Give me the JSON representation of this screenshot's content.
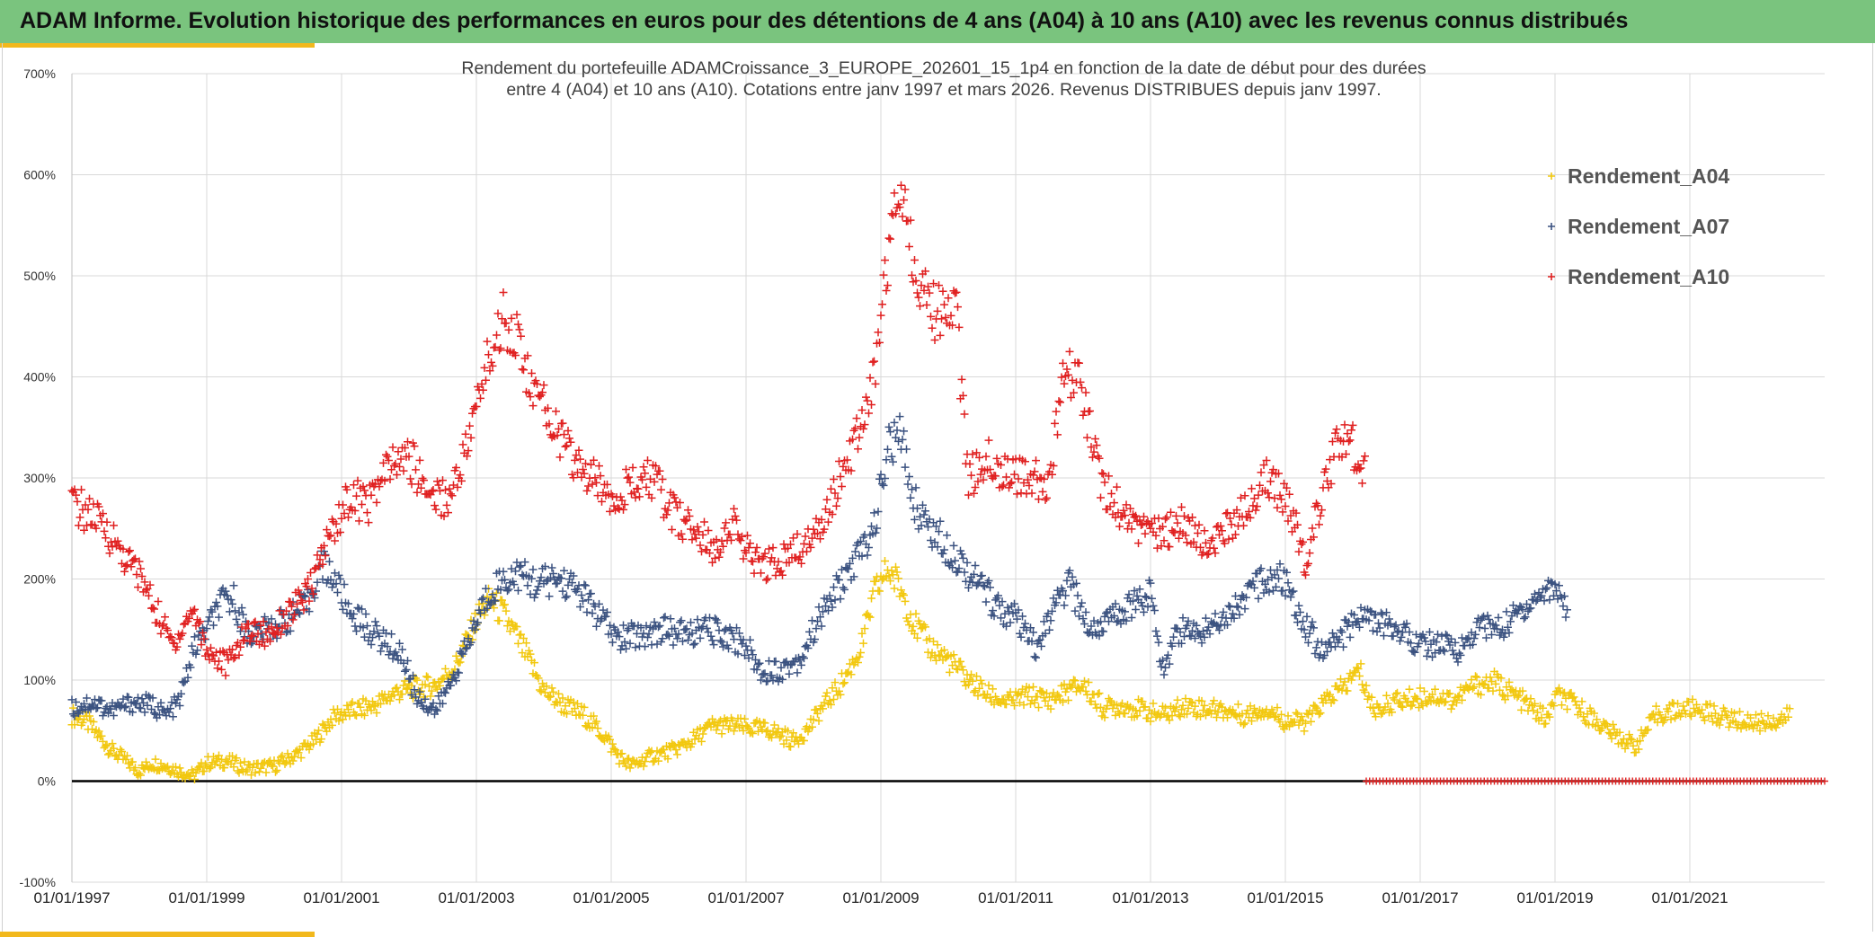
{
  "banner": {
    "title": "ADAM Informe. Evolution historique des performances en euros pour des détentions de 4 ans (A04) à 10 ans (A10) avec les revenus connus distribués"
  },
  "colors": {
    "banner": "#7ac47e",
    "accent": "#f2b81c",
    "A04": "#f2c80f",
    "A07": "#3b5280",
    "A10": "#e02020",
    "grid": "#d9d9d9",
    "zero": "#000000"
  },
  "chart_data": {
    "type": "scatter",
    "title": "Rendement du portefeuille ADAMCroissance_3_EUROPE_202601_15_1p4  en fonction de la date de début pour des durées",
    "subtitle": "entre 4 (A04) et 10 ans (A10). Cotations entre janv 1997 et mars 2026. Revenus DISTRIBUES depuis janv 1997.",
    "xlabel": "",
    "ylabel": "",
    "x_range": [
      1997.0,
      2023.0
    ],
    "ylim": [
      -100,
      700
    ],
    "y_ticks": [
      "700%",
      "600%",
      "500%",
      "400%",
      "300%",
      "200%",
      "100%",
      "0%",
      "-100%"
    ],
    "x_ticks": [
      "01/01/1997",
      "01/01/1999",
      "01/01/2001",
      "01/01/2003",
      "01/01/2005",
      "01/01/2007",
      "01/01/2009",
      "01/01/2011",
      "01/01/2013",
      "01/01/2015",
      "01/01/2017",
      "01/01/2019",
      "01/01/2021"
    ],
    "grid": true,
    "legend_position": "top-right",
    "marker": "+",
    "series": [
      {
        "name": "Rendement_A04",
        "color_key": "A04",
        "points": [
          [
            1997.0,
            65
          ],
          [
            1997.2,
            60
          ],
          [
            1997.4,
            45
          ],
          [
            1997.6,
            30
          ],
          [
            1997.8,
            20
          ],
          [
            1998.0,
            10
          ],
          [
            1998.2,
            18
          ],
          [
            1998.4,
            15
          ],
          [
            1998.6,
            10
          ],
          [
            1998.8,
            5
          ],
          [
            1999.0,
            18
          ],
          [
            1999.3,
            20
          ],
          [
            1999.6,
            12
          ],
          [
            2000.0,
            15
          ],
          [
            2000.3,
            25
          ],
          [
            2000.6,
            40
          ],
          [
            2000.9,
            65
          ],
          [
            2001.2,
            70
          ],
          [
            2001.5,
            75
          ],
          [
            2001.8,
            88
          ],
          [
            2002.1,
            92
          ],
          [
            2002.4,
            95
          ],
          [
            2002.7,
            115
          ],
          [
            2003.0,
            160
          ],
          [
            2003.2,
            180
          ],
          [
            2003.4,
            165
          ],
          [
            2003.7,
            130
          ],
          [
            2004.0,
            90
          ],
          [
            2004.3,
            75
          ],
          [
            2004.6,
            65
          ],
          [
            2004.9,
            45
          ],
          [
            2005.1,
            25
          ],
          [
            2005.3,
            15
          ],
          [
            2005.6,
            25
          ],
          [
            2005.9,
            30
          ],
          [
            2006.2,
            40
          ],
          [
            2006.5,
            55
          ],
          [
            2006.8,
            55
          ],
          [
            2007.1,
            52
          ],
          [
            2007.4,
            50
          ],
          [
            2007.7,
            40
          ],
          [
            2007.9,
            50
          ],
          [
            2008.1,
            70
          ],
          [
            2008.4,
            95
          ],
          [
            2008.7,
            130
          ],
          [
            2008.9,
            185
          ],
          [
            2009.1,
            210
          ],
          [
            2009.3,
            190
          ],
          [
            2009.5,
            155
          ],
          [
            2009.7,
            135
          ],
          [
            2010.0,
            120
          ],
          [
            2010.3,
            100
          ],
          [
            2010.6,
            85
          ],
          [
            2010.9,
            78
          ],
          [
            2011.2,
            85
          ],
          [
            2011.5,
            80
          ],
          [
            2011.8,
            90
          ],
          [
            2012.0,
            95
          ],
          [
            2012.3,
            72
          ],
          [
            2012.6,
            75
          ],
          [
            2012.9,
            70
          ],
          [
            2013.2,
            65
          ],
          [
            2013.5,
            75
          ],
          [
            2013.8,
            72
          ],
          [
            2014.1,
            70
          ],
          [
            2014.4,
            65
          ],
          [
            2014.7,
            72
          ],
          [
            2015.0,
            60
          ],
          [
            2015.3,
            58
          ],
          [
            2015.6,
            80
          ],
          [
            2015.9,
            95
          ],
          [
            2016.1,
            110
          ],
          [
            2016.3,
            70
          ],
          [
            2016.6,
            78
          ],
          [
            2016.9,
            82
          ],
          [
            2017.2,
            85
          ],
          [
            2017.5,
            80
          ],
          [
            2017.8,
            95
          ],
          [
            2018.1,
            98
          ],
          [
            2018.4,
            85
          ],
          [
            2018.7,
            70
          ],
          [
            2018.9,
            60
          ],
          [
            2019.0,
            85
          ],
          [
            2019.3,
            75
          ],
          [
            2019.6,
            60
          ],
          [
            2019.9,
            45
          ],
          [
            2020.2,
            35
          ],
          [
            2020.5,
            65
          ],
          [
            2020.8,
            70
          ],
          [
            2021.1,
            72
          ],
          [
            2021.4,
            65
          ],
          [
            2021.7,
            60
          ],
          [
            2022.0,
            58
          ],
          [
            2022.3,
            60
          ],
          [
            2022.5,
            65
          ]
        ]
      },
      {
        "name": "Rendement_A07",
        "color_key": "A07",
        "points": [
          [
            1997.0,
            72
          ],
          [
            1997.3,
            78
          ],
          [
            1997.6,
            70
          ],
          [
            1997.9,
            78
          ],
          [
            1998.2,
            75
          ],
          [
            1998.4,
            65
          ],
          [
            1998.6,
            80
          ],
          [
            1998.8,
            130
          ],
          [
            1999.0,
            150
          ],
          [
            1999.2,
            175
          ],
          [
            1999.4,
            180
          ],
          [
            1999.6,
            145
          ],
          [
            1999.9,
            150
          ],
          [
            2000.2,
            160
          ],
          [
            2000.5,
            175
          ],
          [
            2000.7,
            215
          ],
          [
            2000.9,
            200
          ],
          [
            2001.1,
            170
          ],
          [
            2001.4,
            150
          ],
          [
            2001.7,
            135
          ],
          [
            2001.9,
            125
          ],
          [
            2002.1,
            85
          ],
          [
            2002.4,
            70
          ],
          [
            2002.6,
            95
          ],
          [
            2002.9,
            140
          ],
          [
            2003.1,
            175
          ],
          [
            2003.3,
            195
          ],
          [
            2003.6,
            205
          ],
          [
            2003.9,
            195
          ],
          [
            2004.2,
            200
          ],
          [
            2004.5,
            190
          ],
          [
            2004.8,
            165
          ],
          [
            2005.1,
            140
          ],
          [
            2005.4,
            145
          ],
          [
            2005.8,
            150
          ],
          [
            2006.1,
            145
          ],
          [
            2006.4,
            150
          ],
          [
            2006.7,
            145
          ],
          [
            2007.0,
            135
          ],
          [
            2007.2,
            110
          ],
          [
            2007.5,
            110
          ],
          [
            2007.8,
            120
          ],
          [
            2008.0,
            150
          ],
          [
            2008.3,
            185
          ],
          [
            2008.6,
            215
          ],
          [
            2008.9,
            250
          ],
          [
            2009.1,
            330
          ],
          [
            2009.3,
            340
          ],
          [
            2009.5,
            275
          ],
          [
            2009.8,
            245
          ],
          [
            2010.1,
            225
          ],
          [
            2010.4,
            200
          ],
          [
            2010.7,
            175
          ],
          [
            2011.0,
            160
          ],
          [
            2011.3,
            130
          ],
          [
            2011.6,
            175
          ],
          [
            2011.8,
            195
          ],
          [
            2012.1,
            150
          ],
          [
            2012.4,
            160
          ],
          [
            2012.7,
            175
          ],
          [
            2013.0,
            185
          ],
          [
            2013.2,
            110
          ],
          [
            2013.4,
            150
          ],
          [
            2013.7,
            145
          ],
          [
            2014.0,
            160
          ],
          [
            2014.3,
            175
          ],
          [
            2014.6,
            195
          ],
          [
            2014.9,
            205
          ],
          [
            2015.2,
            170
          ],
          [
            2015.5,
            130
          ],
          [
            2015.8,
            140
          ],
          [
            2016.1,
            165
          ],
          [
            2016.4,
            155
          ],
          [
            2016.7,
            150
          ],
          [
            2017.0,
            135
          ],
          [
            2017.3,
            135
          ],
          [
            2017.6,
            130
          ],
          [
            2017.9,
            155
          ],
          [
            2018.2,
            150
          ],
          [
            2018.5,
            170
          ],
          [
            2018.8,
            185
          ],
          [
            2019.0,
            195
          ],
          [
            2019.2,
            170
          ]
        ]
      },
      {
        "name": "Rendement_A10",
        "color_key": "A10",
        "points": [
          [
            1997.0,
            275
          ],
          [
            1997.3,
            262
          ],
          [
            1997.5,
            250
          ],
          [
            1997.8,
            220
          ],
          [
            1998.0,
            205
          ],
          [
            1998.3,
            160
          ],
          [
            1998.5,
            135
          ],
          [
            1998.8,
            170
          ],
          [
            1999.0,
            130
          ],
          [
            1999.3,
            115
          ],
          [
            1999.6,
            150
          ],
          [
            1999.9,
            145
          ],
          [
            2000.2,
            165
          ],
          [
            2000.5,
            185
          ],
          [
            2000.8,
            240
          ],
          [
            2001.1,
            280
          ],
          [
            2001.4,
            275
          ],
          [
            2001.7,
            310
          ],
          [
            2002.0,
            320
          ],
          [
            2002.3,
            285
          ],
          [
            2002.6,
            280
          ],
          [
            2002.9,
            340
          ],
          [
            2003.1,
            400
          ],
          [
            2003.4,
            460
          ],
          [
            2003.6,
            440
          ],
          [
            2003.8,
            390
          ],
          [
            2004.1,
            360
          ],
          [
            2004.4,
            320
          ],
          [
            2004.7,
            300
          ],
          [
            2005.0,
            285
          ],
          [
            2005.3,
            290
          ],
          [
            2005.6,
            300
          ],
          [
            2005.9,
            265
          ],
          [
            2006.2,
            250
          ],
          [
            2006.5,
            230
          ],
          [
            2006.8,
            255
          ],
          [
            2007.1,
            215
          ],
          [
            2007.4,
            215
          ],
          [
            2007.7,
            225
          ],
          [
            2008.0,
            240
          ],
          [
            2008.3,
            285
          ],
          [
            2008.6,
            330
          ],
          [
            2008.9,
            400
          ],
          [
            2009.1,
            520
          ],
          [
            2009.3,
            600
          ],
          [
            2009.5,
            510
          ],
          [
            2009.7,
            470
          ],
          [
            2009.9,
            460
          ],
          [
            2010.1,
            480
          ],
          [
            2010.3,
            300
          ],
          [
            2010.6,
            320
          ],
          [
            2010.9,
            305
          ],
          [
            2011.2,
            295
          ],
          [
            2011.5,
            300
          ],
          [
            2011.7,
            390
          ],
          [
            2011.9,
            410
          ],
          [
            2012.1,
            345
          ],
          [
            2012.3,
            290
          ],
          [
            2012.6,
            265
          ],
          [
            2012.9,
            245
          ],
          [
            2013.2,
            245
          ],
          [
            2013.5,
            255
          ],
          [
            2013.8,
            235
          ],
          [
            2014.1,
            245
          ],
          [
            2014.4,
            270
          ],
          [
            2014.7,
            300
          ],
          [
            2014.9,
            290
          ],
          [
            2015.1,
            260
          ],
          [
            2015.3,
            220
          ],
          [
            2015.5,
            270
          ],
          [
            2015.8,
            340
          ],
          [
            2016.0,
            330
          ],
          [
            2016.2,
            310
          ]
        ]
      }
    ]
  }
}
